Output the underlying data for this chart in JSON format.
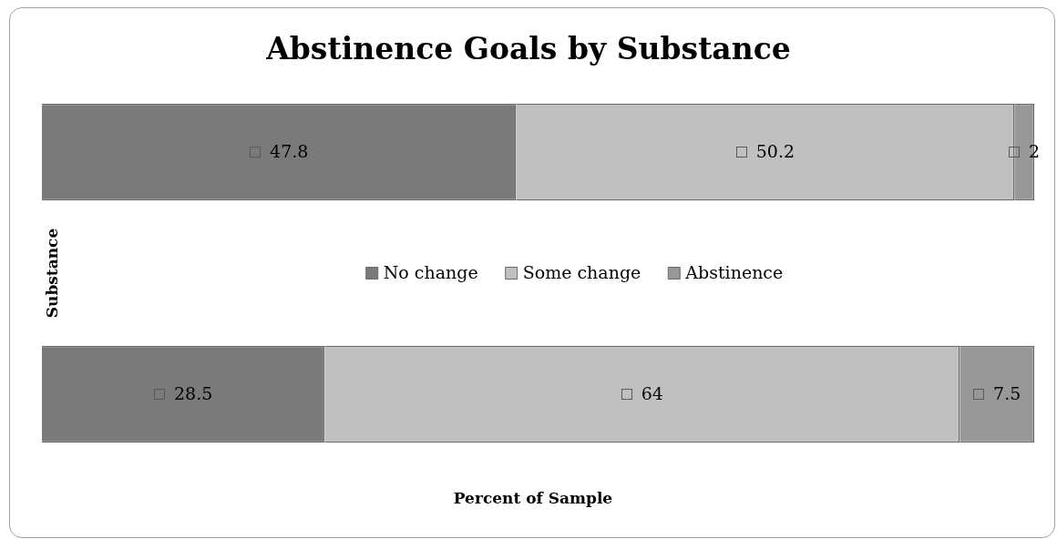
{
  "chart_data": {
    "type": "bar",
    "orientation": "horizontal",
    "stacked": true,
    "title": "Abstinence Goals by Substance",
    "xlabel": "Percent of Sample",
    "ylabel": "Substance",
    "categories": [
      null,
      null
    ],
    "series": [
      {
        "name": "No change",
        "color": "#7a7a7a",
        "values": [
          47.8,
          28.5
        ]
      },
      {
        "name": "Some change",
        "color": "#c0c0c0",
        "values": [
          50.2,
          64
        ]
      },
      {
        "name": "Abstinence",
        "color": "#989898",
        "values": [
          2,
          7.5
        ]
      }
    ],
    "xlim": [
      0,
      100
    ],
    "tick_labels": false,
    "grid": false,
    "legend": "center",
    "data_labels": true
  }
}
